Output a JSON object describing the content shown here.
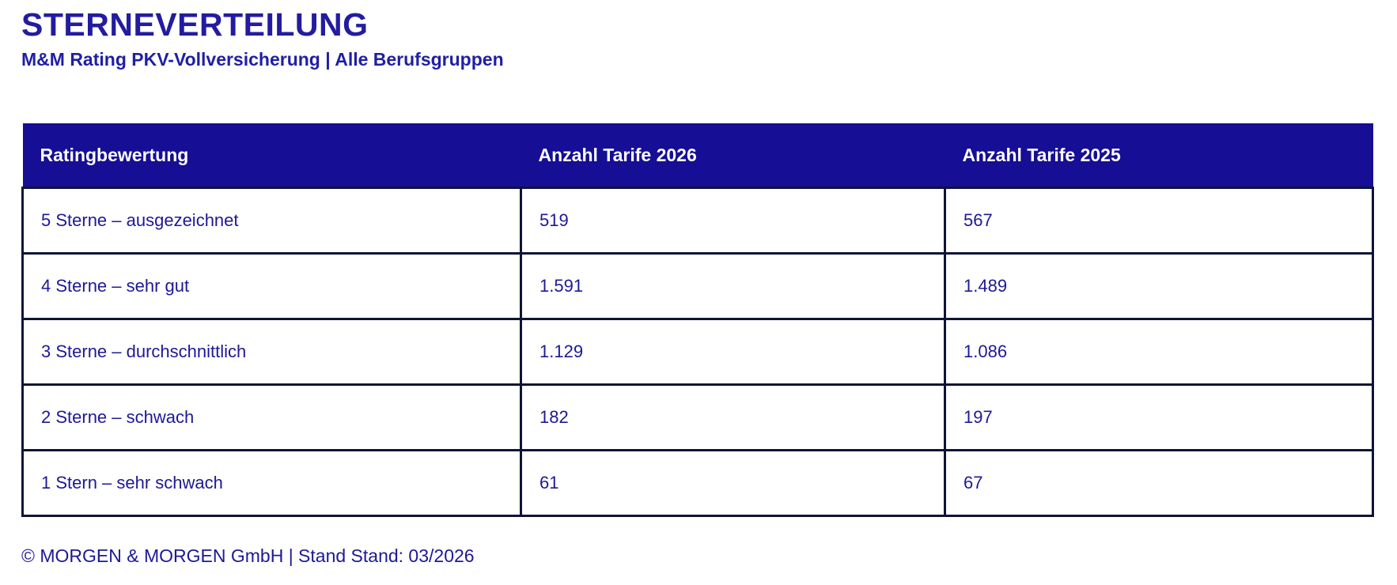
{
  "header": {
    "title": "STERNEVERTEILUNG",
    "subtitle": "M&M Rating PKV-Vollversicherung | Alle Berufsgruppen"
  },
  "chart_data": {
    "type": "table",
    "title": "STERNEVERTEILUNG",
    "subtitle": "M&M Rating PKV-Vollversicherung | Alle Berufsgruppen",
    "columns": [
      {
        "label": "Ratingbewertung"
      },
      {
        "label": "Anzahl Tarife 2026"
      },
      {
        "label": "Anzahl Tarife 2025"
      }
    ],
    "rows": [
      {
        "label": "5 Sterne – ausgezeichnet",
        "tarife_2026": "519",
        "tarife_2025": "567"
      },
      {
        "label": "4 Sterne – sehr gut",
        "tarife_2026": "1.591",
        "tarife_2025": "1.489"
      },
      {
        "label": "3 Sterne – durchschnittlich",
        "tarife_2026": "1.129",
        "tarife_2025": "1.086"
      },
      {
        "label": "2 Sterne – schwach",
        "tarife_2026": "182",
        "tarife_2025": "197"
      },
      {
        "label": "1 Stern – sehr schwach",
        "tarife_2026": "61",
        "tarife_2025": "67"
      }
    ],
    "numeric_values": {
      "tarife_2026": [
        519,
        1591,
        1129,
        182,
        61
      ],
      "tarife_2025": [
        567,
        1489,
        1086,
        197,
        67
      ]
    }
  },
  "footer": {
    "text": "© MORGEN & MORGEN GmbH | Stand Stand: 03/2026"
  },
  "colors": {
    "header_bg": "#160e94",
    "header_text": "#ffffff",
    "title_text": "#231ca0",
    "subtitle_text": "#1f1fa6",
    "cell_text": "#1d1996",
    "border": "#0d1535",
    "page_bg": "#ffffff"
  }
}
